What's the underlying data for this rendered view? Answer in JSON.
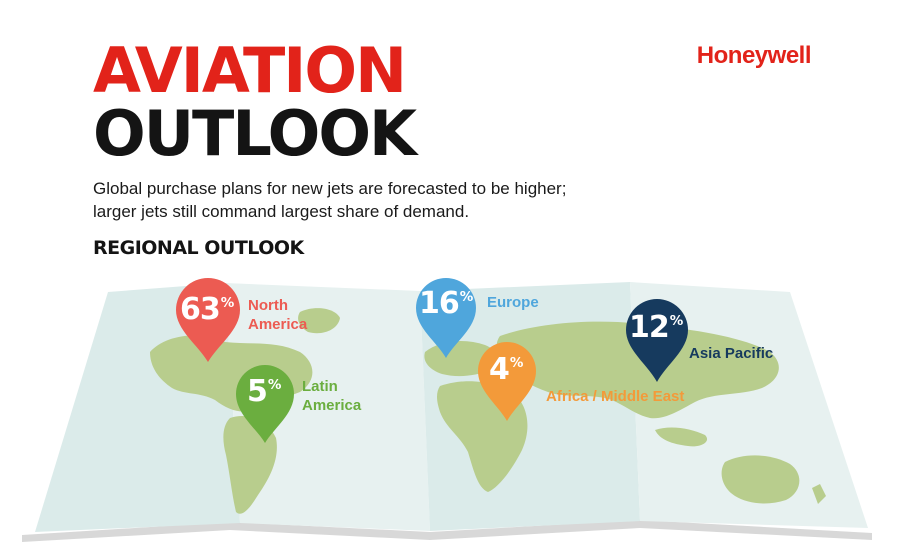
{
  "header": {
    "title_line1": "AVIATION",
    "title_line2": "OUTLOOK",
    "brand": "Honeywell",
    "subtitle_line1": "Global purchase plans for new jets are forecasted to be higher;",
    "subtitle_line2": "larger jets still command largest share of demand.",
    "section_heading": "REGIONAL OUTLOOK"
  },
  "colors": {
    "brand_red": "#e2231a",
    "north_america": "#ec5b52",
    "latin_america": "#6bae3f",
    "europe": "#4fa6dc",
    "africa_middle_east": "#f39a3a",
    "asia_pacific": "#163a5e",
    "map_water": "#dcebea",
    "map_land": "#b7cc8c"
  },
  "regions": [
    {
      "key": "north_america",
      "value": "63",
      "unit": "%",
      "label_lines": [
        "North",
        "America"
      ]
    },
    {
      "key": "latin_america",
      "value": "5",
      "unit": "%",
      "label_lines": [
        "Latin",
        "America"
      ]
    },
    {
      "key": "europe",
      "value": "16",
      "unit": "%",
      "label_lines": [
        "Europe"
      ]
    },
    {
      "key": "africa_middle_east",
      "value": "4",
      "unit": "%",
      "label_lines": [
        "Africa / Middle East"
      ]
    },
    {
      "key": "asia_pacific",
      "value": "12",
      "unit": "%",
      "label_lines": [
        "Asia Pacific"
      ]
    }
  ]
}
